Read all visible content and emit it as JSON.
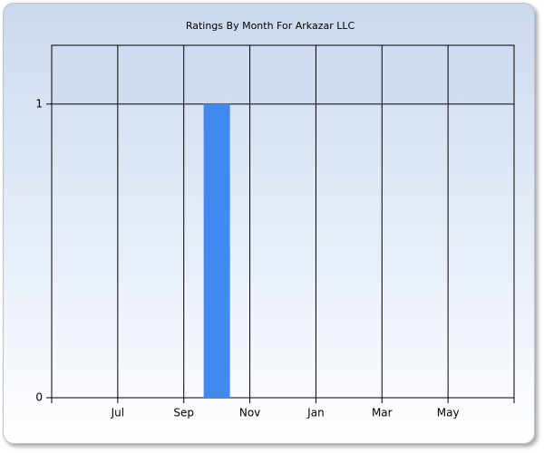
{
  "chart_data": {
    "type": "bar",
    "title": "Ratings By Month For Arkazar LLC",
    "categories": [
      null,
      null,
      "Jul",
      null,
      "Sep",
      null,
      "Nov",
      null,
      "Jan",
      null,
      "Mar",
      null,
      "May",
      null,
      null
    ],
    "values": [
      0,
      0,
      0,
      0,
      0,
      1,
      0,
      0,
      0,
      0,
      0,
      0,
      0,
      0,
      0
    ],
    "color": "#4189ee",
    "ylim": [
      0,
      1.2
    ],
    "yticks": [
      0,
      1
    ],
    "grid": true
  }
}
